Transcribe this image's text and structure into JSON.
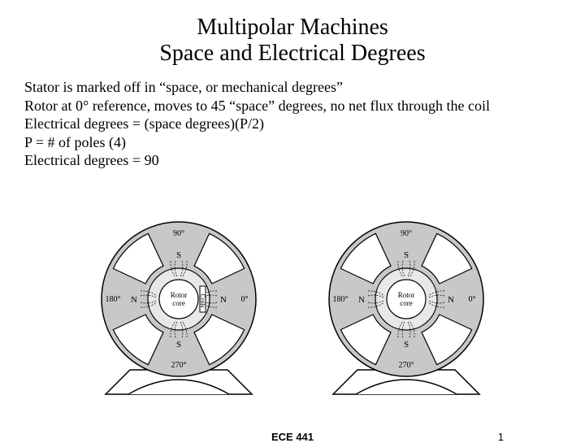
{
  "colors": {
    "background": "#ffffff",
    "text": "#000000",
    "stroke": "#000000",
    "machine_fill": "#c8c8c8",
    "rotor_fill": "#e8e8e8",
    "white": "#ffffff"
  },
  "title": {
    "line1": "Multipolar Machines",
    "line2": "Space and Electrical Degrees",
    "fontsize": 28
  },
  "body": {
    "lines": [
      "Stator is marked off in “space, or mechanical degrees”",
      "Rotor at 0° reference, moves to 45 “space” degrees, no net flux through the coil",
      "Electrical degrees = (space degrees)(P/2)",
      "P = # of poles (4)",
      "Electrical degrees = 90"
    ],
    "fontsize": 18
  },
  "machine": {
    "outer_radius": 95,
    "inner_slot_radius": 45,
    "rotor_radius": 38,
    "core_radius": 24,
    "pole_arc_deg": 50,
    "degree_labels": [
      {
        "text": "90°",
        "angle_deg": 90
      },
      {
        "text": "0°",
        "angle_deg": 0
      },
      {
        "text": "270°",
        "angle_deg": 270
      },
      {
        "text": "180°",
        "angle_deg": 180
      }
    ],
    "pole_labels": [
      {
        "text": "S",
        "angle_deg": 90
      },
      {
        "text": "N",
        "angle_deg": 0
      },
      {
        "text": "S",
        "angle_deg": 270
      },
      {
        "text": "N",
        "angle_deg": 180
      }
    ],
    "rotor_label": "Rotor\ncore",
    "coil_label": "Coils",
    "stand_width": 180,
    "stand_height": 30
  },
  "left_machine": {
    "show_coil_label": true
  },
  "right_machine": {
    "show_coil_label": false
  },
  "footer": {
    "course": "ECE 441",
    "page": "1",
    "fontsize": 13
  }
}
